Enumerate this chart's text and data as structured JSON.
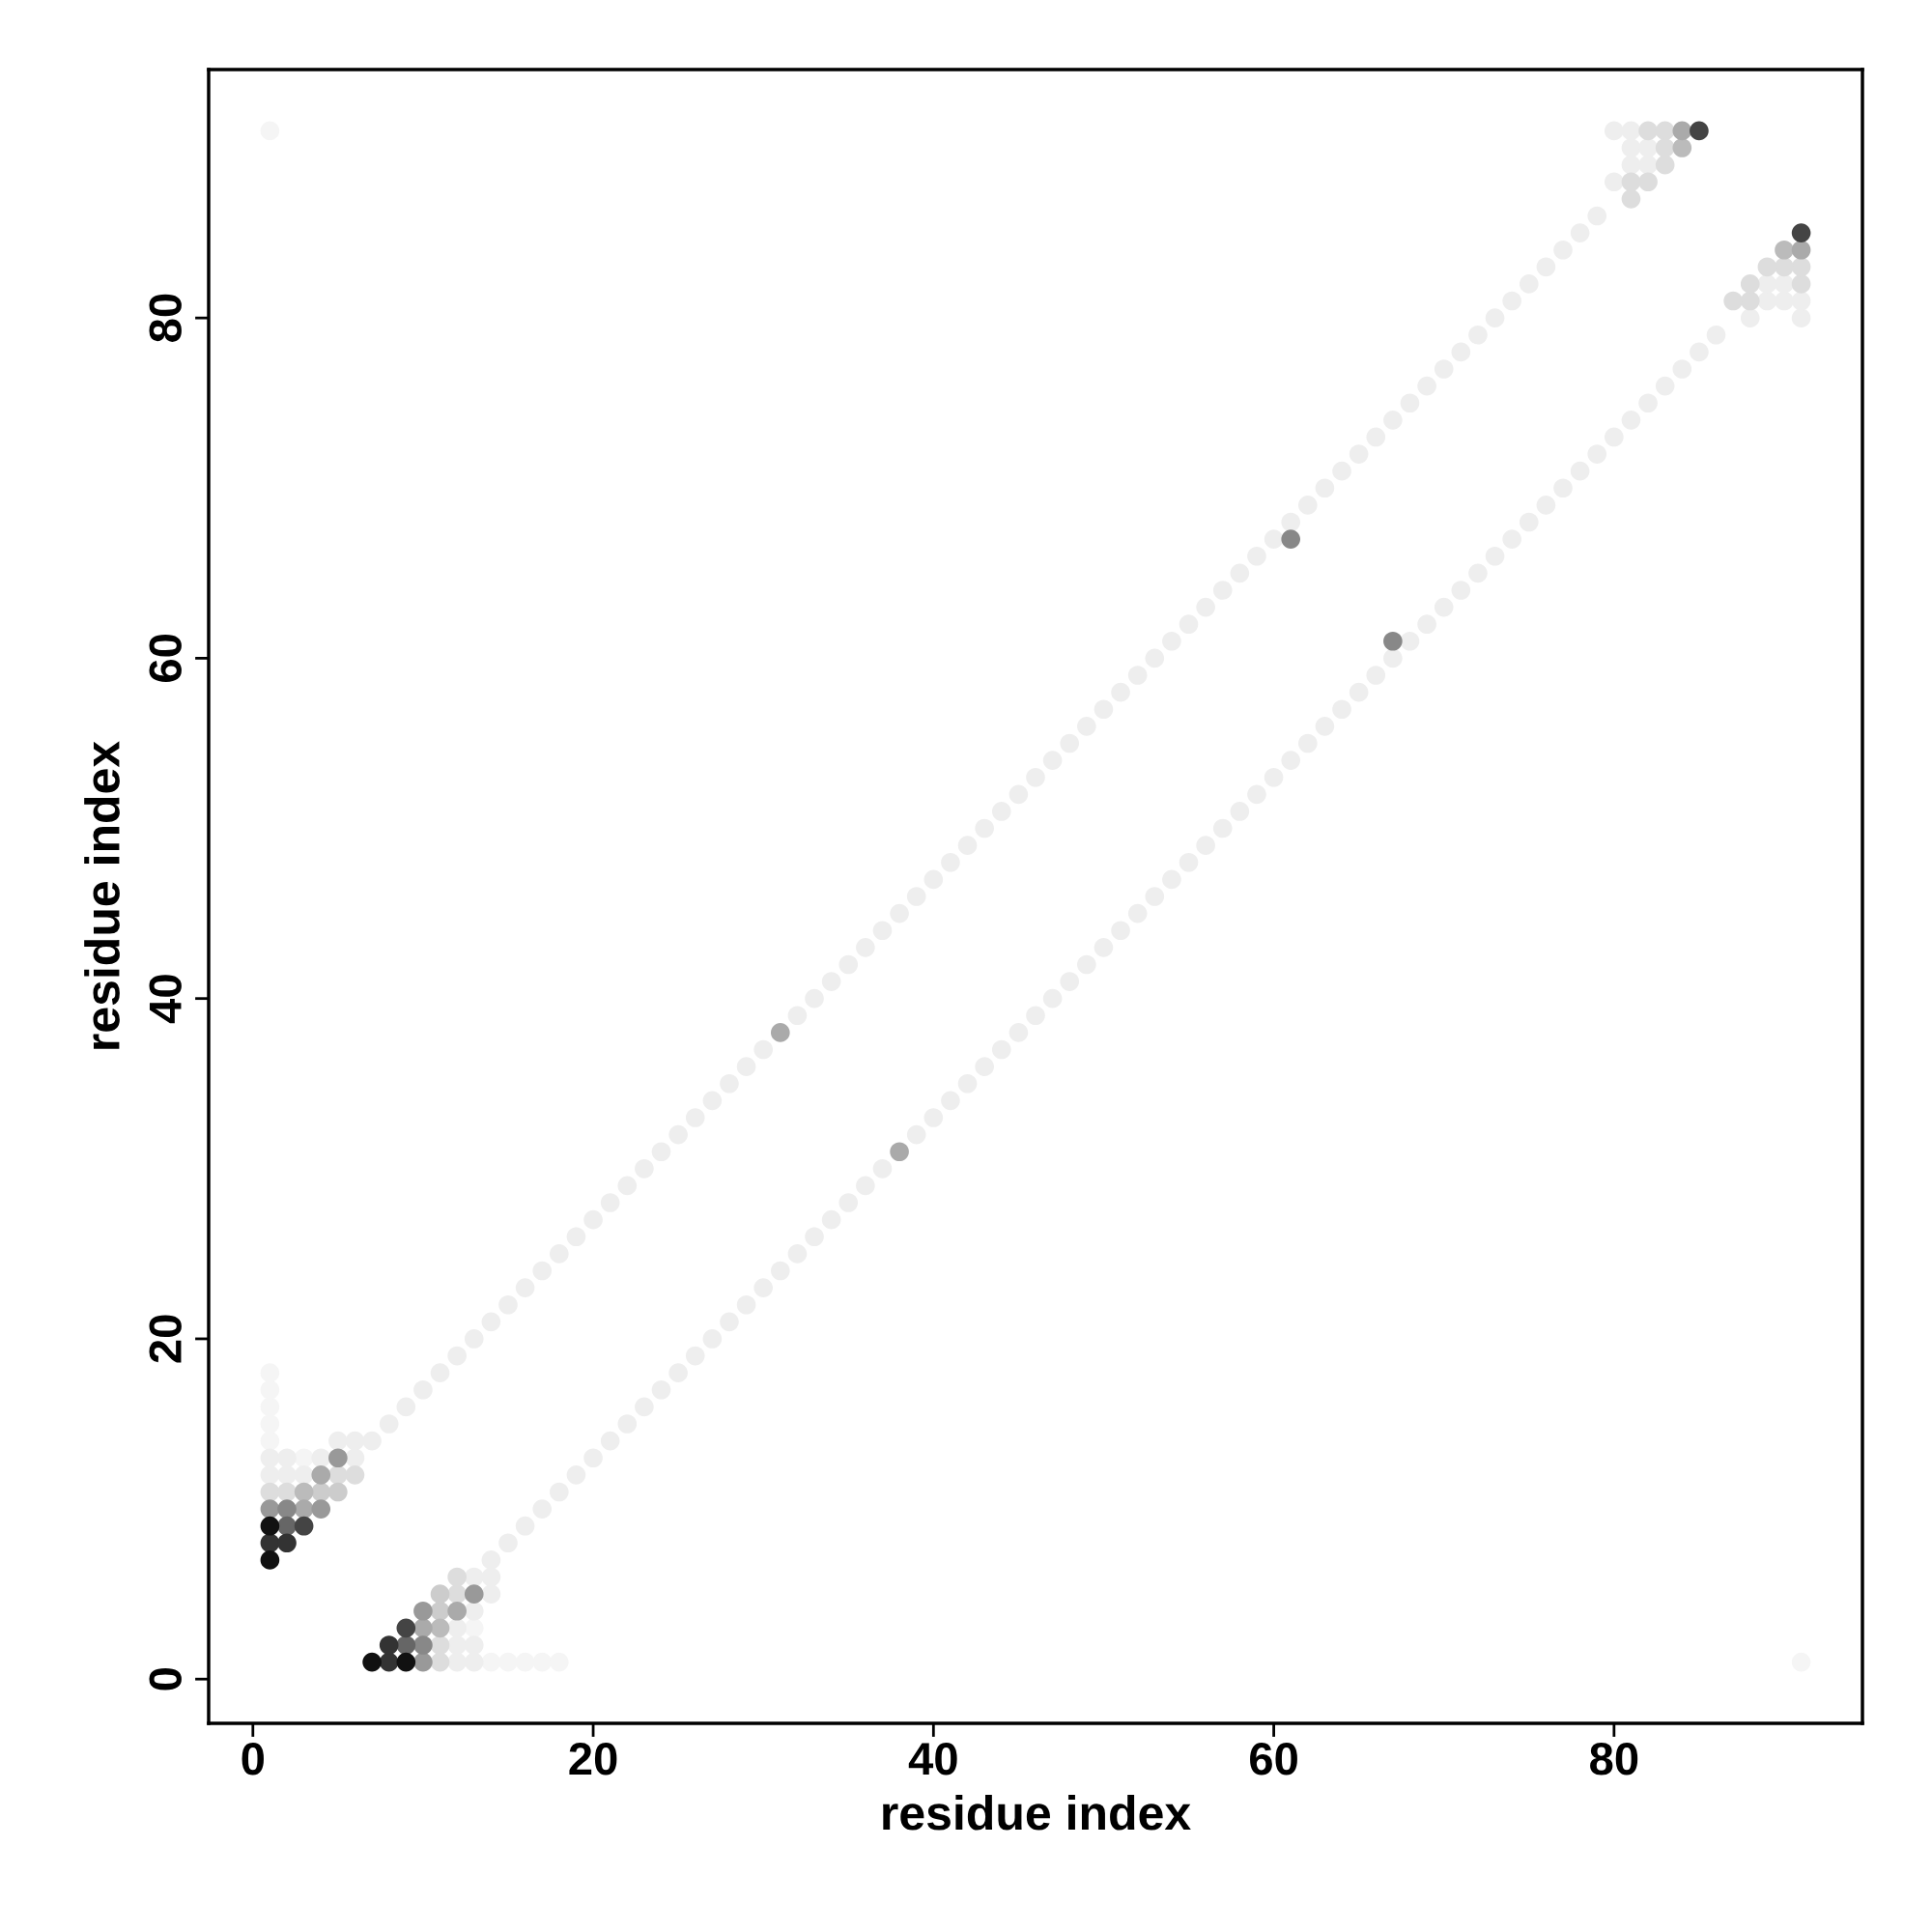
{
  "chart_data": {
    "type": "scatter",
    "xlabel": "residue index",
    "ylabel": "residue index",
    "xlim": [
      -2.6,
      94.6
    ],
    "ylim": [
      -2.6,
      94.6
    ],
    "xticks": [
      0,
      20,
      40,
      60,
      80
    ],
    "yticks": [
      0,
      20,
      40,
      60,
      80
    ],
    "grid": false,
    "legend": false,
    "marker": "circle",
    "series": [
      {
        "color": "#eeeeee",
        "x": [
          7,
          8,
          9,
          10,
          11,
          12,
          13,
          14,
          15,
          16,
          17,
          18,
          19,
          20,
          21,
          22,
          23,
          24,
          25,
          26,
          27,
          28,
          29,
          30,
          32,
          33,
          34,
          35,
          36,
          37,
          38,
          39,
          40,
          41,
          42,
          43,
          44,
          45,
          46,
          47,
          48,
          49,
          50,
          51,
          52,
          53,
          54,
          55,
          56,
          57,
          58,
          59,
          60,
          61,
          62,
          63,
          64,
          65,
          66,
          67,
          68,
          69,
          70,
          71,
          72,
          73,
          74,
          75,
          76,
          77,
          78,
          79
        ],
        "values": [
          14,
          15,
          16,
          17,
          18,
          19,
          20,
          21,
          22,
          23,
          24,
          25,
          26,
          27,
          28,
          29,
          30,
          31,
          32,
          33,
          34,
          35,
          36,
          37,
          39,
          40,
          41,
          42,
          43,
          44,
          45,
          46,
          47,
          48,
          49,
          50,
          51,
          52,
          53,
          54,
          55,
          56,
          57,
          58,
          59,
          60,
          61,
          62,
          63,
          64,
          65,
          66,
          67,
          68,
          69,
          70,
          71,
          72,
          73,
          74,
          75,
          76,
          77,
          78,
          79,
          80,
          81,
          82,
          83,
          84,
          85,
          86
        ]
      },
      {
        "color": "#eeeeee",
        "x": [
          14,
          15,
          16,
          17,
          18,
          19,
          20,
          21,
          22,
          23,
          24,
          25,
          26,
          27,
          28,
          29,
          30,
          31,
          32,
          33,
          34,
          35,
          36,
          37,
          39,
          40,
          41,
          42,
          43,
          44,
          45,
          46,
          47,
          48,
          49,
          50,
          51,
          52,
          53,
          54,
          55,
          56,
          57,
          58,
          59,
          60,
          61,
          62,
          63,
          64,
          65,
          66,
          67,
          68,
          69,
          70,
          71,
          72,
          73,
          74,
          75,
          76,
          77,
          78,
          79,
          80,
          81,
          82,
          83,
          84,
          85,
          86
        ],
        "values": [
          7,
          8,
          9,
          10,
          11,
          12,
          13,
          14,
          15,
          16,
          17,
          18,
          19,
          20,
          21,
          22,
          23,
          24,
          25,
          26,
          27,
          28,
          29,
          30,
          32,
          33,
          34,
          35,
          36,
          37,
          38,
          39,
          40,
          41,
          42,
          43,
          44,
          45,
          46,
          47,
          48,
          49,
          50,
          51,
          52,
          53,
          54,
          55,
          56,
          57,
          58,
          59,
          60,
          61,
          62,
          63,
          64,
          65,
          66,
          67,
          68,
          69,
          70,
          71,
          72,
          73,
          74,
          75,
          76,
          77,
          78,
          79
        ]
      },
      {
        "color": "#f5f5f5",
        "x": [
          14,
          15,
          16,
          17,
          18,
          13,
          1,
          1,
          1,
          1,
          1,
          3,
          1,
          91
        ],
        "values": [
          1,
          1,
          1,
          1,
          1,
          3,
          14,
          15,
          16,
          17,
          18,
          13,
          91,
          1
        ]
      },
      {
        "color": "#eeeeee",
        "x": [
          12,
          13,
          12,
          13,
          12,
          13,
          13,
          14,
          14,
          1,
          1,
          2,
          2,
          3,
          4,
          6,
          6,
          5,
          80,
          81,
          81,
          82,
          81,
          82,
          80,
          91,
          91,
          90,
          90,
          89,
          89,
          88
        ],
        "values": [
          1,
          1,
          2,
          2,
          3,
          4,
          6,
          6,
          5,
          12,
          13,
          12,
          13,
          12,
          13,
          13,
          14,
          14,
          91,
          91,
          90,
          90,
          89,
          89,
          88,
          80,
          81,
          81,
          82,
          81,
          82,
          80
        ]
      },
      {
        "color": "#dddddd",
        "x": [
          11,
          1,
          11,
          2,
          12,
          5,
          12,
          6,
          82,
          83,
          91,
          91,
          83,
          90,
          83,
          89,
          81,
          82,
          88,
          88,
          81,
          87
        ],
        "values": [
          1,
          11,
          2,
          11,
          5,
          12,
          6,
          12,
          91,
          91,
          82,
          83,
          90,
          83,
          89,
          83,
          88,
          88,
          81,
          82,
          87,
          81
        ]
      },
      {
        "color": "#cccccc",
        "x": [
          11,
          4,
          11,
          5
        ],
        "values": [
          4,
          11,
          5,
          11
        ]
      },
      {
        "color": "#bbbbbb",
        "x": [
          11,
          3,
          84,
          90
        ],
        "values": [
          3,
          11,
          90,
          84
        ]
      },
      {
        "color": "#aaaaaa",
        "x": [
          10,
          3,
          12,
          4,
          84,
          91,
          31,
          38
        ],
        "values": [
          3,
          10,
          4,
          12,
          91,
          84,
          38,
          31
        ]
      },
      {
        "color": "#999999",
        "x": [
          10,
          1,
          10,
          4,
          13,
          5
        ],
        "values": [
          1,
          10,
          4,
          10,
          5,
          13
        ]
      },
      {
        "color": "#888888",
        "x": [
          10,
          2,
          61,
          67
        ],
        "values": [
          2,
          10,
          67,
          61
        ]
      },
      {
        "color": "#666666",
        "x": [
          9,
          2
        ],
        "values": [
          2,
          9
        ]
      },
      {
        "color": "#444444",
        "x": [
          85,
          91,
          9,
          3
        ],
        "values": [
          91,
          85,
          3,
          9
        ]
      },
      {
        "color": "#333333",
        "x": [
          8,
          1,
          2,
          8
        ],
        "values": [
          1,
          8,
          8,
          2
        ]
      },
      {
        "color": "#111111",
        "x": [
          7,
          9,
          1,
          1
        ],
        "values": [
          1,
          1,
          7,
          9
        ]
      }
    ]
  }
}
